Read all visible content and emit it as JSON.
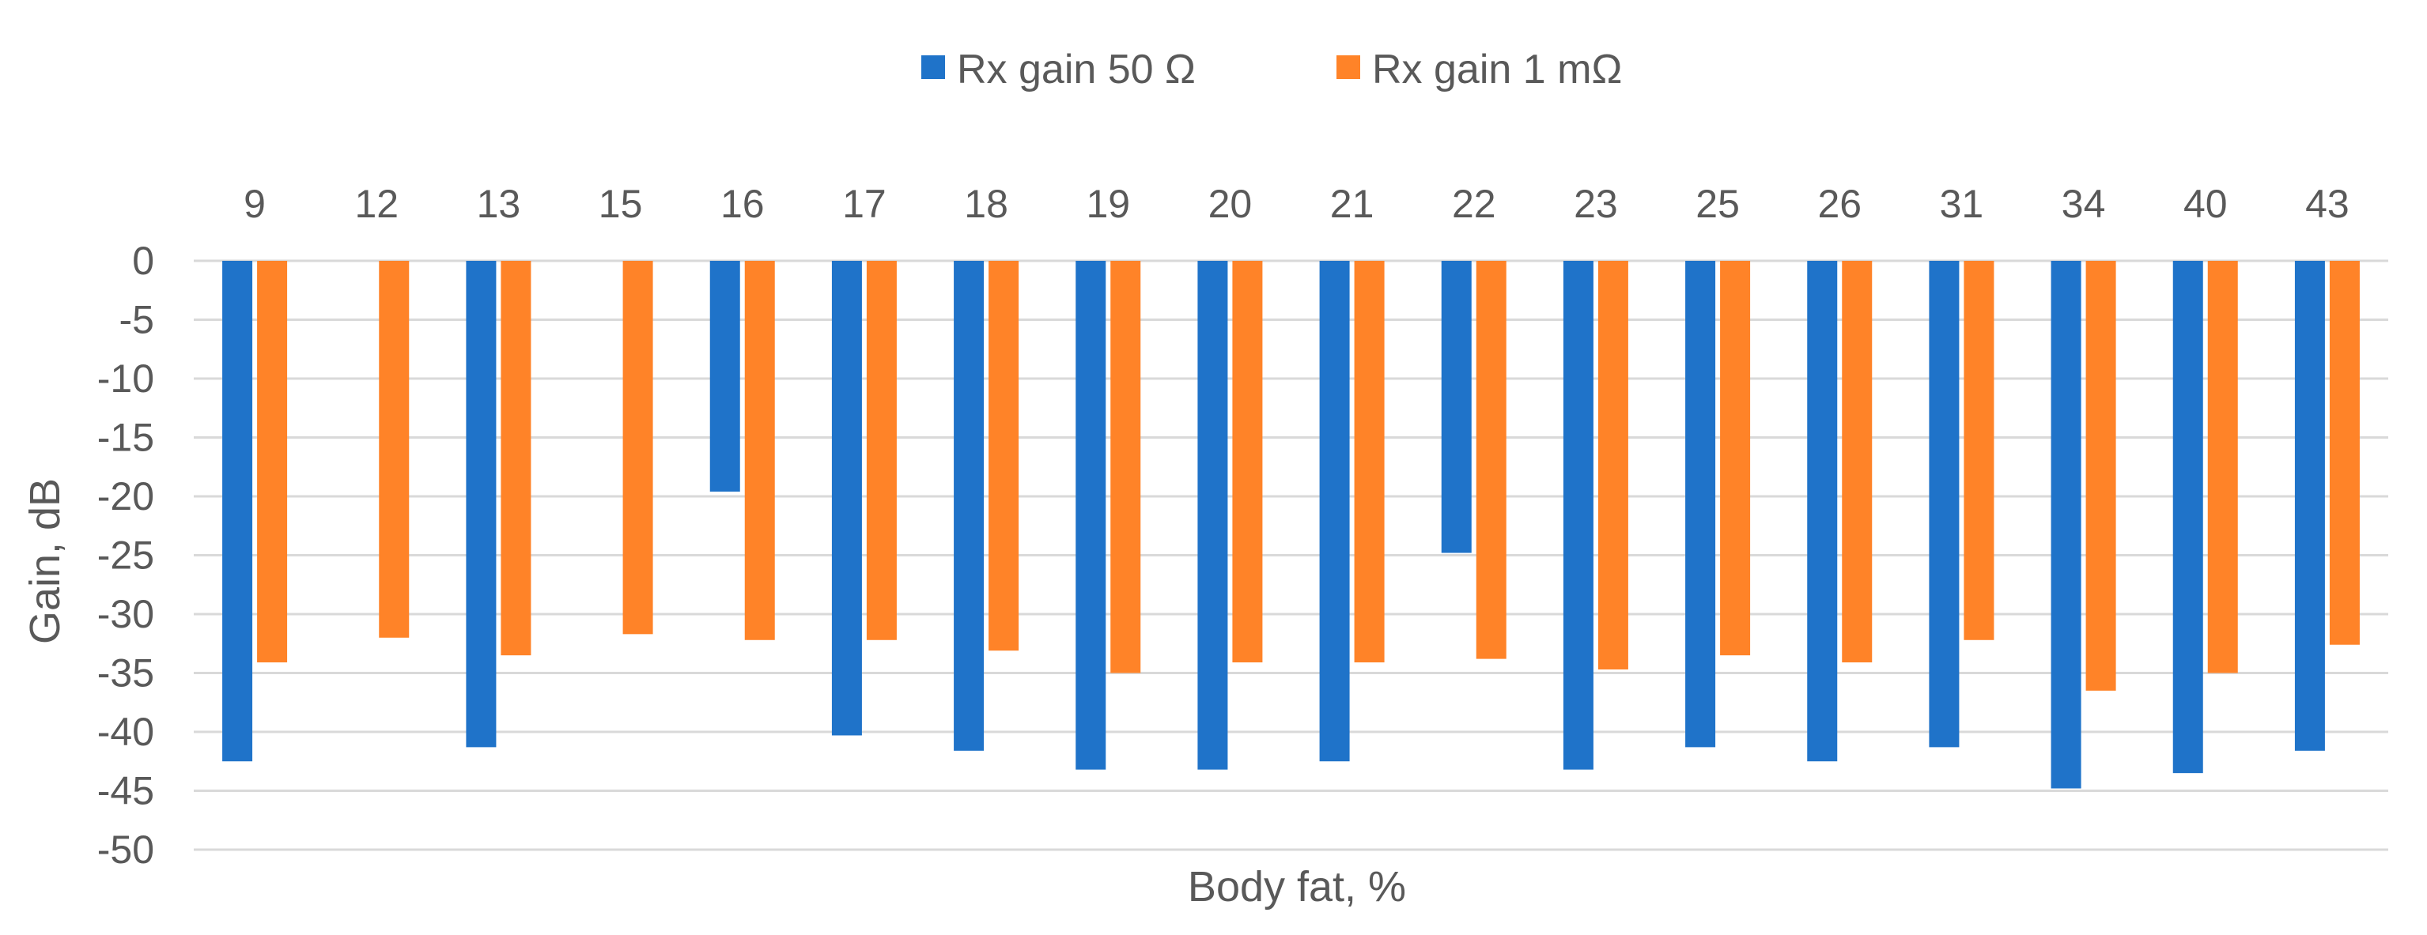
{
  "chart_data": {
    "type": "bar",
    "title": "",
    "xlabel": "Body fat, %",
    "ylabel": "Gain, dB",
    "categories": [
      "9",
      "12",
      "13",
      "15",
      "16",
      "17",
      "18",
      "19",
      "20",
      "21",
      "22",
      "23",
      "25",
      "26",
      "31",
      "34",
      "40",
      "43"
    ],
    "series": [
      {
        "name": "Rx gain 50 Ω",
        "color": "#1F73C9",
        "values": [
          -42.5,
          null,
          -41.3,
          null,
          -19.6,
          -40.3,
          -41.6,
          -43.2,
          -43.2,
          -42.5,
          -24.8,
          -43.2,
          -41.3,
          -42.5,
          -41.3,
          -44.8,
          -43.5,
          -41.6
        ]
      },
      {
        "name": "Rx gain 1 mΩ",
        "color": "#FF8328",
        "values": [
          -34.1,
          -32.0,
          -33.5,
          -31.7,
          -32.2,
          -32.2,
          -33.1,
          -35.0,
          -34.1,
          -34.1,
          -33.8,
          -34.7,
          -33.5,
          -34.1,
          -32.2,
          -36.5,
          -35.0,
          -32.6
        ]
      }
    ],
    "ylim": [
      -50,
      0
    ],
    "yticks": [
      0,
      -5,
      -10,
      -15,
      -20,
      -25,
      -30,
      -35,
      -40,
      -45,
      -50
    ],
    "grid": true,
    "legend_position": "top-center",
    "x_tick_position": "top"
  }
}
